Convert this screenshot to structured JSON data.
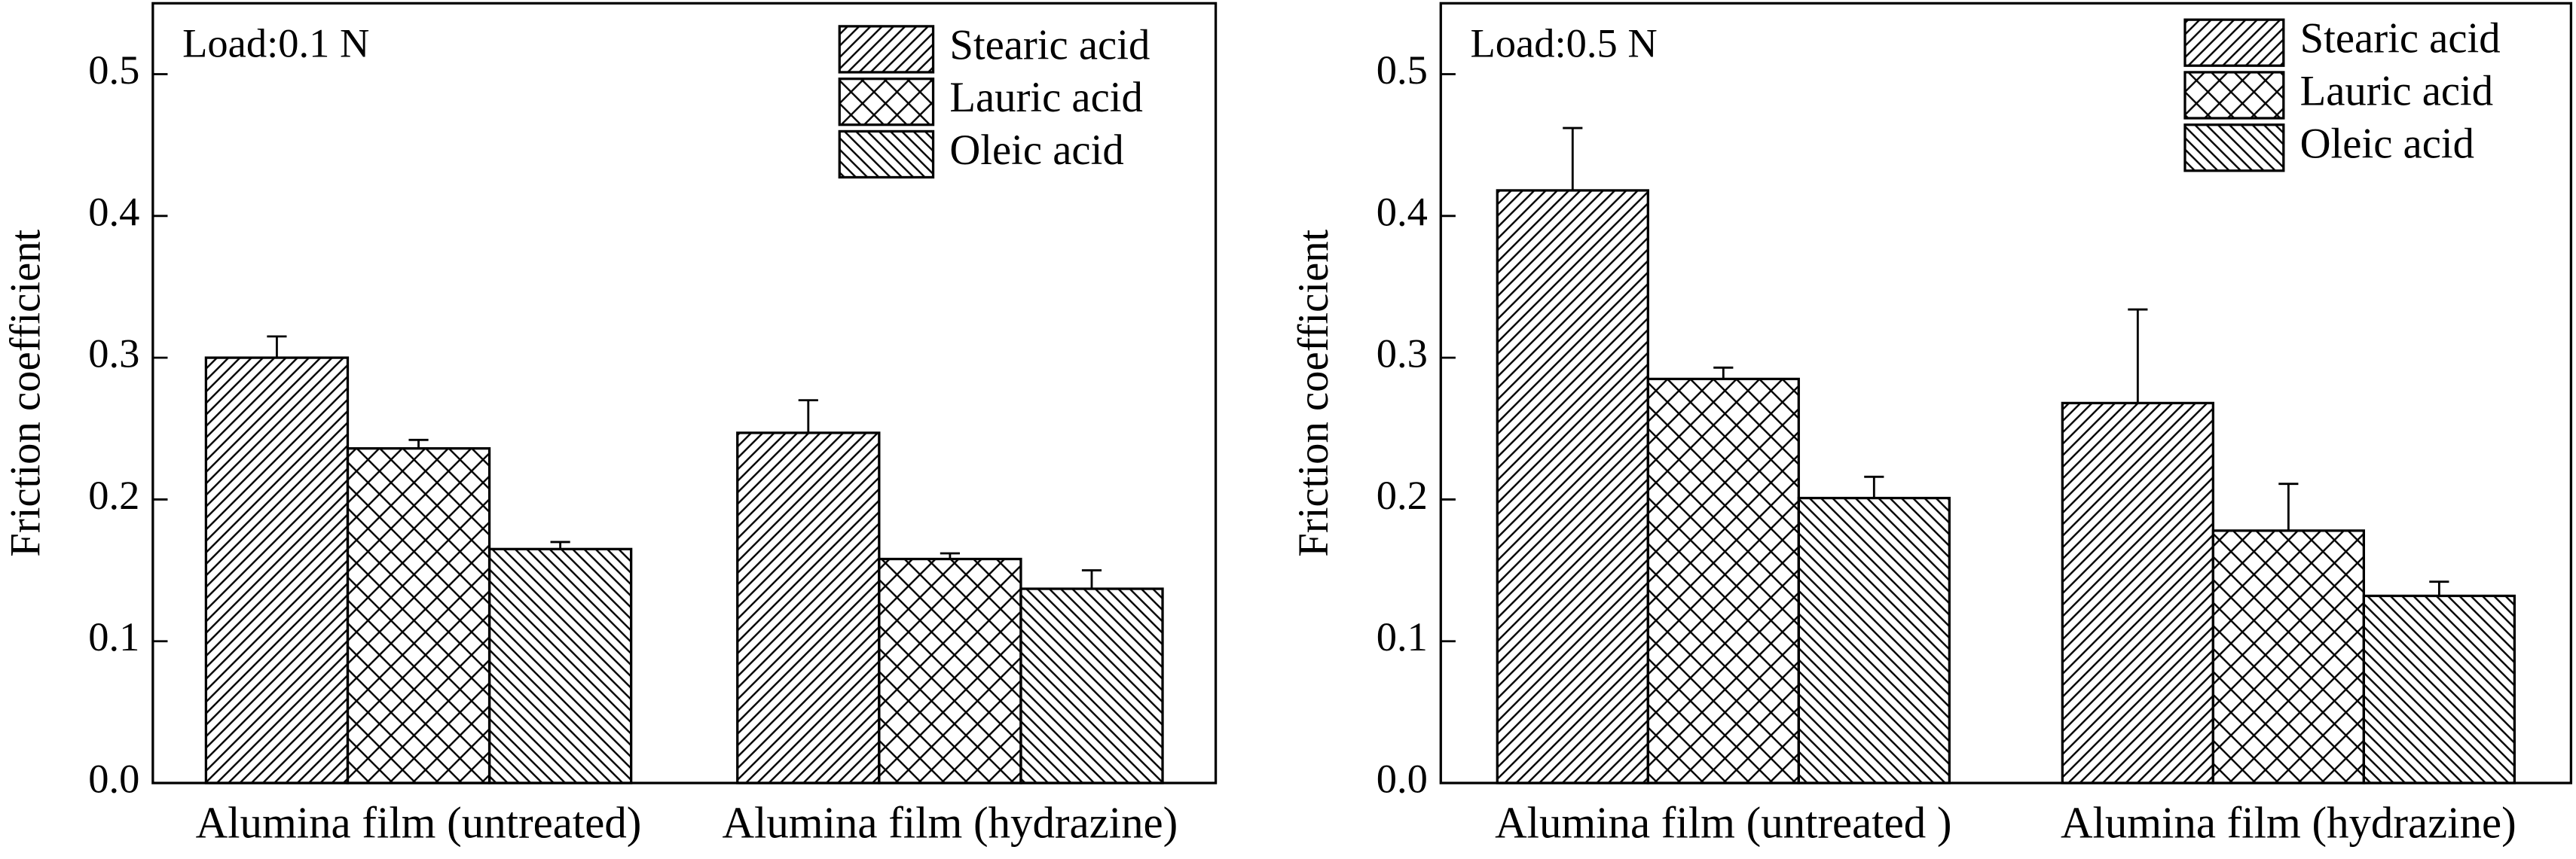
{
  "chart_data": [
    {
      "type": "bar",
      "annotation": "Load:0.1 N",
      "y_label": "Friction coefficient",
      "categories": [
        "Alumina film (untreated)",
        "Alumina film (hydrazine)"
      ],
      "series": [
        {
          "name": "Stearic acid",
          "color": "#000000",
          "hatch": "/",
          "values": [
            0.3,
            0.247
          ],
          "errors": [
            0.015,
            0.023
          ]
        },
        {
          "name": "Lauric acid",
          "color": "#000000",
          "hatch": "x",
          "values": [
            0.236,
            0.158
          ],
          "errors": [
            0.006,
            0.004
          ]
        },
        {
          "name": "Oleic acid",
          "color": "#000000",
          "hatch": "\\",
          "values": [
            0.165,
            0.137
          ],
          "errors": [
            0.005,
            0.013
          ]
        }
      ],
      "ylim": [
        0,
        0.55
      ],
      "yticks": [
        0.0,
        0.1,
        0.2,
        0.3,
        0.4,
        0.5
      ],
      "legend": "upper right"
    },
    {
      "type": "bar",
      "annotation": "Load:0.5 N",
      "y_label": "Friction coefficient",
      "categories": [
        "Alumina film (untreated )",
        "Alumina film (hydrazine)"
      ],
      "series": [
        {
          "name": "Stearic acid",
          "color": "#000000",
          "hatch": "/",
          "values": [
            0.418,
            0.268
          ],
          "errors": [
            0.044,
            0.066
          ]
        },
        {
          "name": "Lauric acid",
          "color": "#000000",
          "hatch": "x",
          "values": [
            0.285,
            0.178
          ],
          "errors": [
            0.008,
            0.033
          ]
        },
        {
          "name": "Oleic acid",
          "color": "#000000",
          "hatch": "\\",
          "values": [
            0.201,
            0.132
          ],
          "errors": [
            0.015,
            0.01
          ]
        }
      ],
      "ylim": [
        0,
        0.55
      ],
      "yticks": [
        0.0,
        0.1,
        0.2,
        0.3,
        0.4,
        0.5
      ],
      "legend": "upper right"
    }
  ]
}
